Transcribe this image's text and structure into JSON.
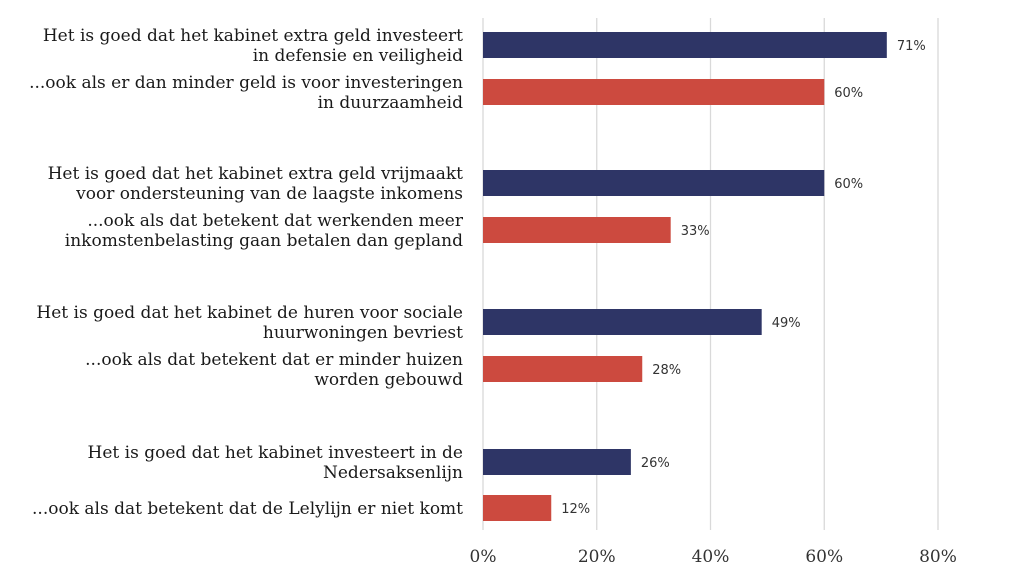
{
  "chart_data": {
    "type": "bar",
    "orientation": "horizontal",
    "categories": [
      [
        "Het is goed dat het kabinet extra geld investeert",
        "in defensie en veiligheid"
      ],
      [
        "...ook als er dan minder geld is voor investeringen",
        "in duurzaamheid"
      ],
      [
        "Het is goed dat het kabinet extra geld vrijmaakt",
        "voor ondersteuning van de laagste inkomens"
      ],
      [
        "...ook als dat betekent dat werkenden meer",
        "inkomstenbelasting gaan betalen dan gepland"
      ],
      [
        "Het is goed dat het kabinet de huren voor sociale",
        "huurwoningen bevriest"
      ],
      [
        "...ook als dat betekent dat er minder huizen",
        "worden gebouwd"
      ],
      [
        "Het is goed dat het kabinet investeert in de",
        "Nedersaksenlijn"
      ],
      [
        "...ook als dat betekent dat de Lelylijn er niet komt"
      ]
    ],
    "values": [
      71,
      60,
      60,
      33,
      49,
      28,
      26,
      12
    ],
    "value_labels": [
      "71%",
      "60%",
      "60%",
      "33%",
      "49%",
      "28%",
      "26%",
      "12%"
    ],
    "bar_colors": [
      "#2e3566",
      "#cc4a3f",
      "#2e3566",
      "#cc4a3f",
      "#2e3566",
      "#cc4a3f",
      "#2e3566",
      "#cc4a3f"
    ],
    "xlim": [
      0,
      80
    ],
    "xticks": [
      0,
      20,
      40,
      60,
      80
    ],
    "xtick_labels": [
      "0%",
      "20%",
      "40%",
      "60%",
      "80%"
    ],
    "grid": true,
    "title": "",
    "xlabel": "",
    "ylabel": ""
  }
}
